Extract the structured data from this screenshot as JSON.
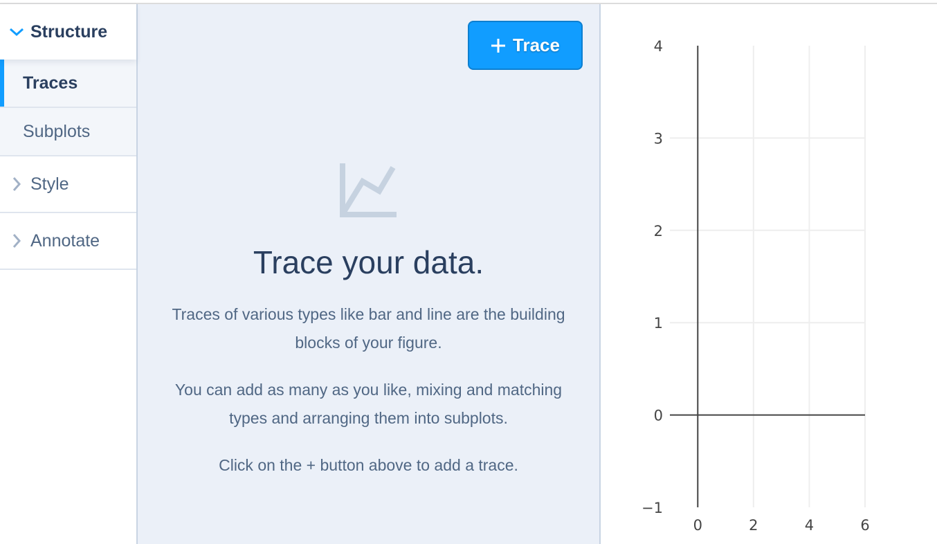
{
  "sidebar": {
    "groups": [
      {
        "label": "Structure",
        "expanded": true,
        "icon": "chevron-down-icon",
        "items": [
          {
            "label": "Traces",
            "active": true
          },
          {
            "label": "Subplots",
            "active": false
          }
        ]
      },
      {
        "label": "Style",
        "expanded": false,
        "icon": "chevron-right-icon"
      },
      {
        "label": "Annotate",
        "expanded": false,
        "icon": "chevron-right-icon"
      }
    ]
  },
  "panel": {
    "add_button": {
      "label": "Trace",
      "icon": "plus-icon"
    },
    "empty_state": {
      "icon": "line-chart-icon",
      "title": "Trace your data.",
      "paragraphs": [
        "Traces of various types like bar and line are the building blocks of your figure.",
        "You can add as many as you like, mixing and matching types and arranging them into subplots.",
        "Click on the + button above to add a trace."
      ]
    }
  },
  "colors": {
    "accent": "#119dff",
    "text_dark": "#2a3f5f",
    "text_muted": "#506784",
    "panel_bg": "#ebf0f8"
  },
  "chart_data": {
    "type": "scatter",
    "series": [],
    "xlim": [
      -1,
      6
    ],
    "ylim": [
      -1,
      4
    ],
    "x_ticks": [
      "0",
      "2",
      "4",
      "6"
    ],
    "y_ticks": [
      "−1",
      "0",
      "1",
      "2",
      "3",
      "4"
    ],
    "grid": true,
    "zeroline": true
  }
}
